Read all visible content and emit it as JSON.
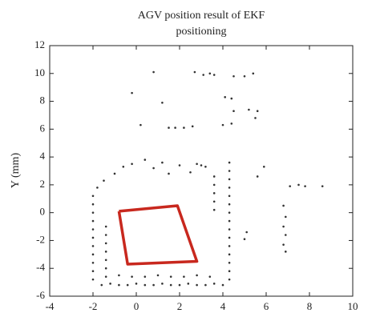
{
  "chart_data": {
    "type": "scatter",
    "title": [
      "AGV position result of EKF",
      "positioning"
    ],
    "y_label": "Y (mm)",
    "xlim": [
      -4,
      10
    ],
    "xticks": [
      -4,
      -2,
      0,
      2,
      4,
      6,
      8,
      10
    ],
    "ylim": [
      -6,
      12
    ],
    "yticks": [
      -6,
      -4,
      -2,
      0,
      2,
      4,
      6,
      8,
      10,
      12
    ],
    "series": [
      {
        "type": "scatter",
        "color": "#333333",
        "x": [
          -1.6,
          -1.2,
          -0.8,
          -0.4,
          0,
          0.4,
          0.8,
          1.2,
          1.6,
          2,
          2.4,
          2.8,
          3.2,
          3.6,
          4.0,
          -1.4,
          -0.8,
          -0.2,
          0.4,
          1,
          1.6,
          2.2,
          2.8,
          3.4,
          -2,
          -2,
          -2,
          -2,
          -2,
          -2,
          -2,
          -2,
          -2,
          -2,
          -2,
          -1.4,
          -1.4,
          -1.4,
          -1.4,
          -1.4,
          -1.4,
          -1.8,
          -1.5,
          -1,
          -0.6,
          -0.2,
          0.8,
          1.5,
          2,
          2.5,
          3,
          4.3,
          4.3,
          4.3,
          4.3,
          4.3,
          4.3,
          4.3,
          4.3,
          4.3,
          4.3,
          4.3,
          4.3,
          4.3,
          4.3,
          4.3,
          3.6,
          3.6,
          3.6,
          3.6,
          3.6,
          1.5,
          1.8,
          2.2,
          2.6,
          0.2,
          4,
          4.4,
          4.5,
          5.2,
          5.6,
          4.1,
          4.4,
          1.2,
          5.5,
          2.7,
          3.1,
          3.4,
          3.6,
          5,
          5.4,
          4.5,
          0.8,
          -0.2,
          6.8,
          6.9,
          6.8,
          6.9,
          6.8,
          6.9,
          7.1,
          7.5,
          7.8,
          8.6,
          5.1,
          5.0,
          5.6,
          5.9,
          0.4,
          1.2,
          2.8,
          3.2
        ],
        "y": [
          -5.2,
          -5.1,
          -5.2,
          -5.2,
          -5.1,
          -5.2,
          -5.2,
          -5.1,
          -5.2,
          -5.2,
          -5.1,
          -5.2,
          -5.2,
          -5.1,
          -5.2,
          -4.6,
          -4.5,
          -4.6,
          -4.6,
          -4.5,
          -4.6,
          -4.6,
          -4.5,
          -4.6,
          -4.8,
          -4.2,
          -3.6,
          -3,
          -2.4,
          -1.8,
          -1.2,
          -0.6,
          0,
          0.6,
          1.2,
          -4,
          -3.4,
          -2.8,
          -2.2,
          -1.6,
          -1,
          1.8,
          2.3,
          2.8,
          3.3,
          3.5,
          3.2,
          2.8,
          3.4,
          2.9,
          3.4,
          -4.8,
          -4.2,
          -3.6,
          -3,
          -2.4,
          -1.8,
          -1.2,
          -0.6,
          0,
          0.6,
          1.2,
          1.8,
          2.4,
          3,
          3.6,
          0.2,
          0.8,
          1.4,
          2,
          2.6,
          6.1,
          6.1,
          6.1,
          6.2,
          6.3,
          6.3,
          6.4,
          7.3,
          7.4,
          7.3,
          8.3,
          8.2,
          7.9,
          6.8,
          10.1,
          9.9,
          10,
          9.9,
          9.8,
          10,
          9.8,
          10.1,
          8.6,
          0.5,
          -0.3,
          -1,
          -1.6,
          -2.3,
          -2.8,
          1.9,
          2,
          1.9,
          1.9,
          -1.4,
          -1.9,
          2.6,
          3.3,
          3.8,
          3.6,
          3.5,
          3.3
        ]
      },
      {
        "type": "line",
        "color": "#c8281e",
        "x": [
          -0.8,
          1.9,
          2.8,
          -0.4,
          -0.8
        ],
        "y": [
          0.1,
          0.5,
          -3.5,
          -3.7,
          0.1
        ]
      }
    ]
  }
}
